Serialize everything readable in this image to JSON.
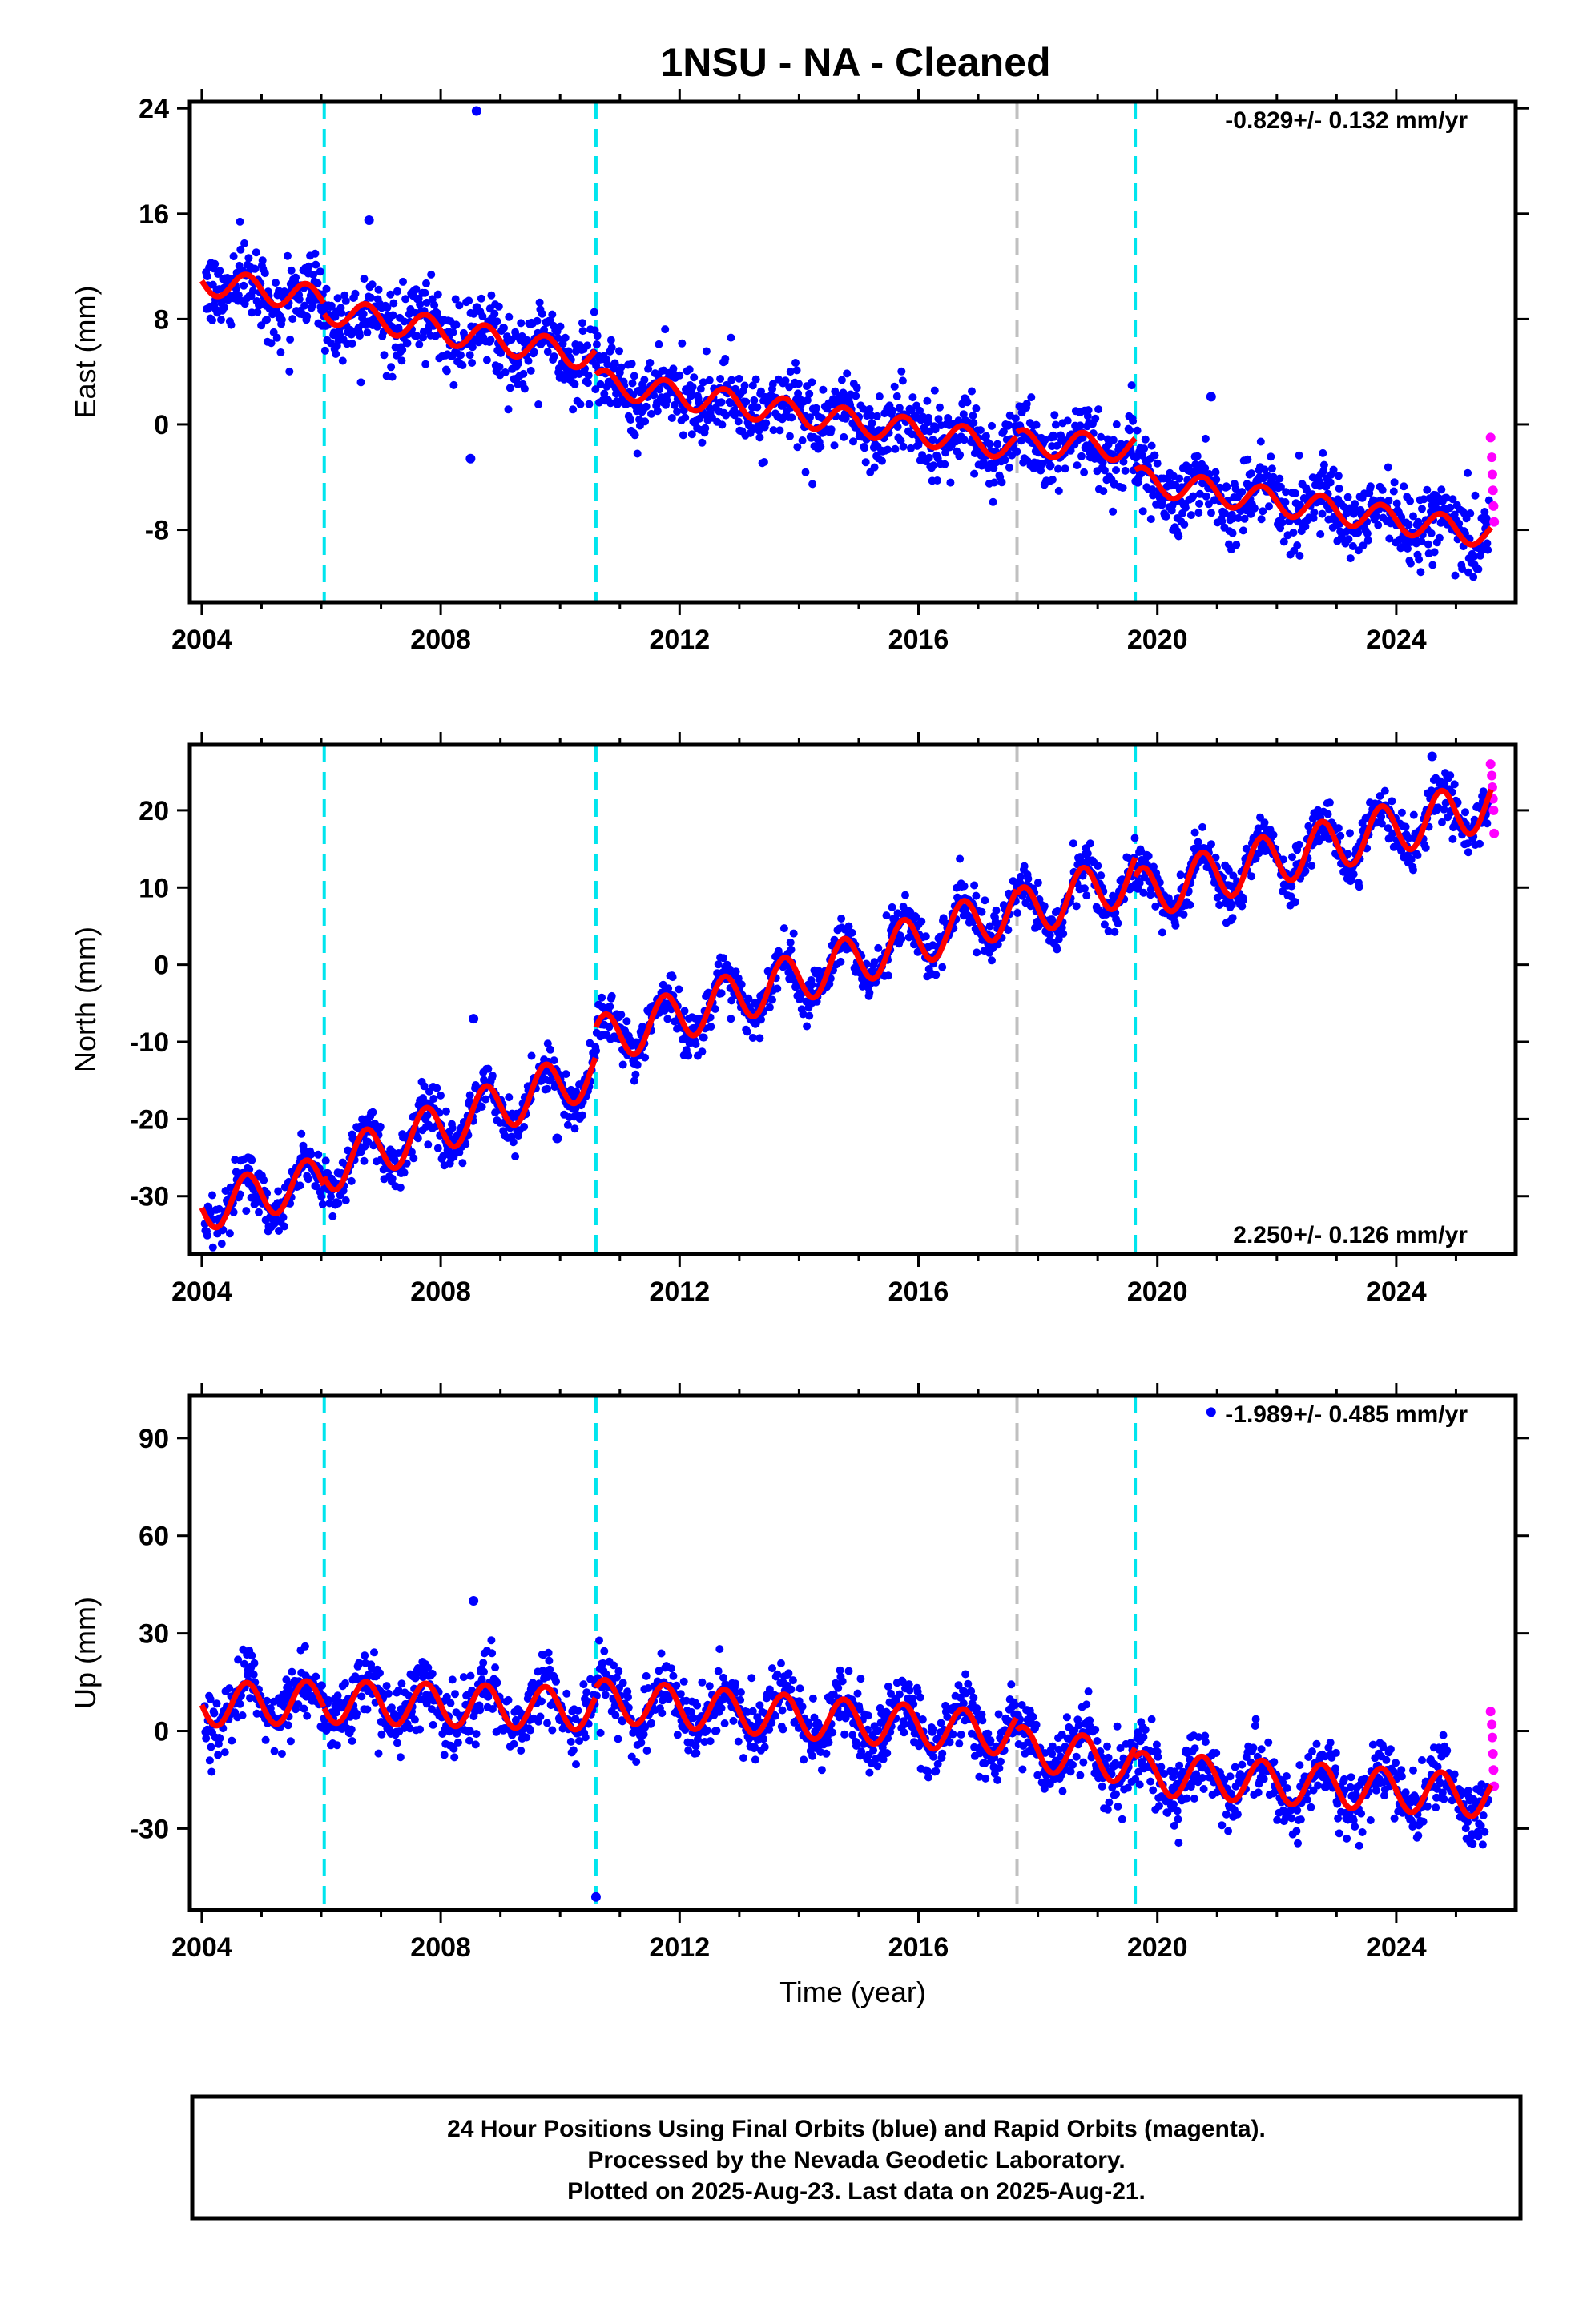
{
  "title": "1NSU  - NA - Cleaned",
  "colors": {
    "final": "#0000ff",
    "rapid": "#ff00ff",
    "model": "#ff0000",
    "event_cyan": "#00e5ee",
    "event_gray": "#c0c0c0"
  },
  "chart_data": [
    {
      "type": "scatter",
      "ylabel": "East (mm)",
      "xlabel": "",
      "xlim": [
        2003.8,
        2026.0
      ],
      "ylim": [
        -13.5,
        24.5
      ],
      "yticks": [
        24,
        16,
        8,
        0,
        -8
      ],
      "ytick_labels": [
        "24",
        "16",
        "8",
        "0",
        "-8"
      ],
      "xticks": [
        2004,
        2008,
        2012,
        2016,
        2020,
        2024
      ],
      "xtick_labels": [
        "2004",
        "2008",
        "2012",
        "2016",
        "2020",
        "2024"
      ],
      "rate_text": "-0.829+/- 0.132 mm/yr",
      "rate_position": "top-right",
      "event_lines": [
        {
          "year": 2006.05,
          "color": "cyan"
        },
        {
          "year": 2010.6,
          "color": "cyan"
        },
        {
          "year": 2017.65,
          "color": "gray"
        },
        {
          "year": 2019.63,
          "color": "cyan"
        }
      ],
      "model_segments": [
        {
          "x0": 2004.0,
          "x1": 2006.05,
          "y0": 10.9,
          "rate": -0.7,
          "amp": 1.0
        },
        {
          "x0": 2006.05,
          "x1": 2010.6,
          "y0": 8.7,
          "rate": -0.8,
          "amp": 1.0
        },
        {
          "x0": 2010.6,
          "x1": 2017.65,
          "y0": 3.2,
          "rate": -0.7,
          "amp": 1.0
        },
        {
          "x0": 2017.65,
          "x1": 2019.63,
          "y0": -1.4,
          "rate": -0.2,
          "amp": 1.0
        },
        {
          "x0": 2019.63,
          "x1": 2025.6,
          "y0": -4.2,
          "rate": -0.7,
          "amp": 1.0
        }
      ],
      "noise": 1.4,
      "outliers": [
        [
          2008.6,
          23.8
        ],
        [
          2006.8,
          15.5
        ],
        [
          2008.5,
          -2.6
        ],
        [
          2020.9,
          2.1
        ]
      ],
      "rapid_points": [
        [
          2025.58,
          -1.0
        ],
        [
          2025.6,
          -2.5
        ],
        [
          2025.61,
          -3.8
        ],
        [
          2025.62,
          -5.0
        ],
        [
          2025.63,
          -6.2
        ],
        [
          2025.64,
          -7.4
        ]
      ]
    },
    {
      "type": "scatter",
      "ylabel": "North (mm)",
      "xlabel": "",
      "xlim": [
        2003.8,
        2026.0
      ],
      "ylim": [
        -37.5,
        28.5
      ],
      "yticks": [
        20,
        10,
        0,
        -10,
        -20,
        -30
      ],
      "ytick_labels": [
        "20",
        "10",
        "0",
        "-10",
        "-20",
        "-30"
      ],
      "xticks": [
        2004,
        2008,
        2012,
        2016,
        2020,
        2024
      ],
      "xtick_labels": [
        "2004",
        "2008",
        "2012",
        "2016",
        "2020",
        "2024"
      ],
      "rate_text": "2.250+/- 0.126 mm/yr",
      "rate_position": "bottom-right",
      "event_lines": [
        {
          "year": 2006.05,
          "color": "cyan"
        },
        {
          "year": 2010.6,
          "color": "cyan"
        },
        {
          "year": 2017.65,
          "color": "gray"
        },
        {
          "year": 2019.63,
          "color": "cyan"
        }
      ],
      "model_segments": [
        {
          "x0": 2004.0,
          "x1": 2006.05,
          "y0": -31.5,
          "rate": 1.8,
          "amp": 3.0
        },
        {
          "x0": 2006.05,
          "x1": 2010.6,
          "y0": -26.5,
          "rate": 2.8,
          "amp": 3.2
        },
        {
          "x0": 2010.6,
          "x1": 2017.65,
          "y0": -10.0,
          "rate": 2.45,
          "amp": 3.2
        },
        {
          "x0": 2017.65,
          "x1": 2019.63,
          "y0": 6.5,
          "rate": 2.5,
          "amp": 3.3
        },
        {
          "x0": 2019.63,
          "x1": 2025.6,
          "y0": 9.0,
          "rate": 2.0,
          "amp": 3.3
        }
      ],
      "noise": 1.6,
      "outliers": [
        [
          2008.55,
          -7.0
        ],
        [
          2009.95,
          -22.5
        ],
        [
          2024.6,
          27.0
        ]
      ],
      "rapid_points": [
        [
          2025.58,
          26.0
        ],
        [
          2025.6,
          24.5
        ],
        [
          2025.61,
          23.0
        ],
        [
          2025.62,
          21.5
        ],
        [
          2025.63,
          20.0
        ],
        [
          2025.64,
          17.0
        ]
      ]
    },
    {
      "type": "scatter",
      "ylabel": "Up (mm)",
      "xlabel": "Time (year)",
      "xlim": [
        2003.8,
        2026.0
      ],
      "ylim": [
        -55,
        103
      ],
      "yticks": [
        90,
        60,
        30,
        0,
        -30
      ],
      "ytick_labels": [
        "90",
        "60",
        "30",
        "0",
        "-30"
      ],
      "xticks": [
        2004,
        2008,
        2012,
        2016,
        2020,
        2024
      ],
      "xtick_labels": [
        "2004",
        "2008",
        "2012",
        "2016",
        "2020",
        "2024"
      ],
      "rate_text": "-1.989+/- 0.485 mm/yr",
      "rate_position": "top-right",
      "event_lines": [
        {
          "year": 2006.05,
          "color": "cyan"
        },
        {
          "year": 2010.6,
          "color": "cyan"
        },
        {
          "year": 2017.65,
          "color": "gray"
        },
        {
          "year": 2019.63,
          "color": "cyan"
        }
      ],
      "model_segments": [
        {
          "x0": 2004.0,
          "x1": 2006.05,
          "y0": 8.0,
          "rate": 0.5,
          "amp": 6.5
        },
        {
          "x0": 2006.05,
          "x1": 2010.6,
          "y0": 9.0,
          "rate": -0.5,
          "amp": 6.5
        },
        {
          "x0": 2010.6,
          "x1": 2017.65,
          "y0": 9.5,
          "rate": -1.5,
          "amp": 6.5
        },
        {
          "x0": 2017.65,
          "x1": 2019.63,
          "y0": -5.0,
          "rate": -2.5,
          "amp": 6.5
        },
        {
          "x0": 2019.63,
          "x1": 2025.6,
          "y0": -13.0,
          "rate": -1.2,
          "amp": 6.5
        }
      ],
      "noise": 5.0,
      "outliers": [
        [
          2008.55,
          40.0
        ],
        [
          2010.6,
          -51.0
        ],
        [
          2020.9,
          98.0
        ]
      ],
      "rapid_points": [
        [
          2025.58,
          6.0
        ],
        [
          2025.6,
          2.0
        ],
        [
          2025.61,
          -2.0
        ],
        [
          2025.62,
          -7.0
        ],
        [
          2025.63,
          -12.0
        ],
        [
          2025.64,
          -17.0
        ]
      ]
    }
  ],
  "footer": {
    "line1": "24 Hour Positions Using Final Orbits (blue) and Rapid Orbits (magenta).",
    "line2": "Processed by the Nevada Geodetic Laboratory.",
    "line3": "Plotted on 2025-Aug-23. Last data on 2025-Aug-21."
  }
}
